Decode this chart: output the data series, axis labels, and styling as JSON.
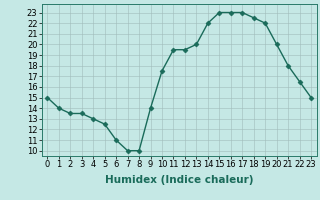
{
  "x": [
    0,
    1,
    2,
    3,
    4,
    5,
    6,
    7,
    8,
    9,
    10,
    11,
    12,
    13,
    14,
    15,
    16,
    17,
    18,
    19,
    20,
    21,
    22,
    23
  ],
  "y": [
    15,
    14,
    13.5,
    13.5,
    13,
    12.5,
    11,
    10,
    10,
    14,
    17.5,
    19.5,
    19.5,
    20,
    22,
    23,
    23,
    23,
    22.5,
    22,
    20,
    18,
    16.5,
    15
  ],
  "line_color": "#1a6b5a",
  "marker": "D",
  "marker_size": 2.5,
  "bg_color": "#c5e8e5",
  "grid_color": "#a0bcba",
  "xlabel": "Humidex (Indice chaleur)",
  "xlim": [
    -0.5,
    23.5
  ],
  "ylim": [
    9.5,
    23.8
  ],
  "yticks": [
    10,
    11,
    12,
    13,
    14,
    15,
    16,
    17,
    18,
    19,
    20,
    21,
    22,
    23
  ],
  "xticks": [
    0,
    1,
    2,
    3,
    4,
    5,
    6,
    7,
    8,
    9,
    10,
    11,
    12,
    13,
    14,
    15,
    16,
    17,
    18,
    19,
    20,
    21,
    22,
    23
  ],
  "xlabel_fontsize": 7.5,
  "tick_fontsize": 6.0,
  "linewidth": 1.0,
  "spine_color": "#2a7a6a"
}
